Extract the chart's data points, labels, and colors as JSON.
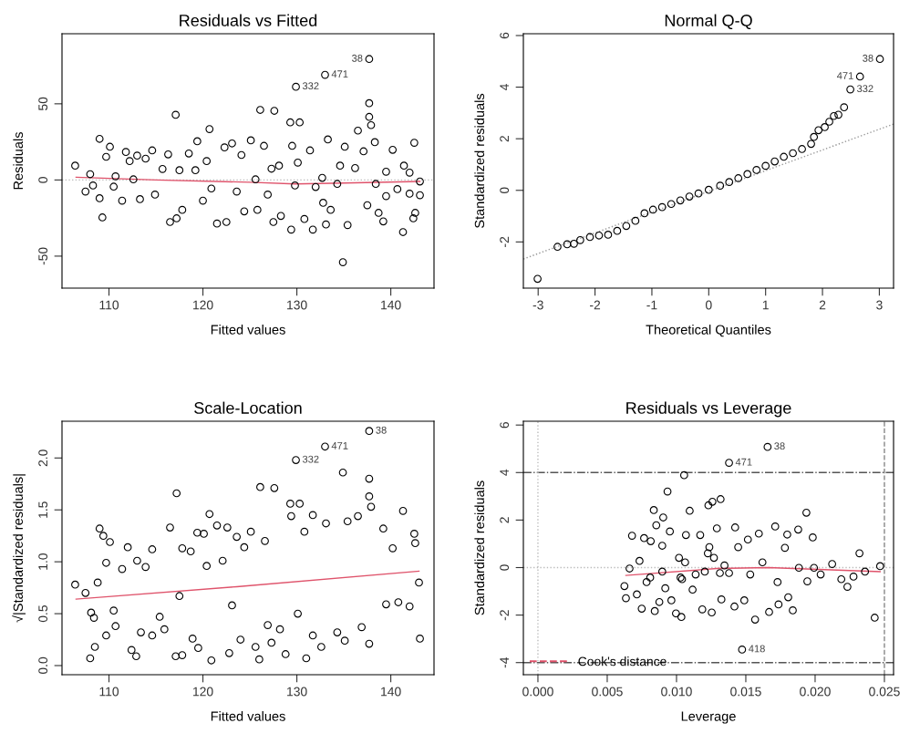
{
  "chart_data": [
    {
      "type": "scatter",
      "title": "Residuals vs Fitted",
      "xlabel": "Fitted values",
      "ylabel": "Residuals",
      "xlim": [
        105.0,
        144.6
      ],
      "xticks": [
        110,
        120,
        130,
        140
      ],
      "ylim": [
        -71,
        96
      ],
      "yticks": [
        -50,
        0,
        50
      ],
      "series": [
        {
          "color": "#000000",
          "marker": "circle",
          "x": [
            106.4,
            107.5,
            108.0,
            108.3,
            109.0,
            109.0,
            109.3,
            109.7,
            110.1,
            110.5,
            110.7,
            111.4,
            111.8,
            112.2,
            112.6,
            113.0,
            113.3,
            113.9,
            114.6,
            114.9,
            115.7,
            116.3,
            116.5,
            117.1,
            117.2,
            117.5,
            117.8,
            118.5,
            119.2,
            119.4,
            120.0,
            120.4,
            120.7,
            120.9,
            121.5,
            122.3,
            122.5,
            123.1,
            123.6,
            124.1,
            124.4,
            125.1,
            125.6,
            125.8,
            126.1,
            126.5,
            126.9,
            127.3,
            127.5,
            127.6,
            128.1,
            128.3,
            129.3,
            129.4,
            129.5,
            129.8,
            129.9,
            130.1,
            130.3,
            130.8,
            131.4,
            131.7,
            132.0,
            132.7,
            132.8,
            133.0,
            133.1,
            133.3,
            133.6,
            134.3,
            134.6,
            134.9,
            135.1,
            135.4,
            136.2,
            136.5,
            137.1,
            137.5,
            137.7,
            137.7,
            137.7,
            137.9,
            138.3,
            138.4,
            138.7,
            139.2,
            139.5,
            139.5,
            140.2,
            140.7,
            141.3,
            141.4,
            142.0,
            142.0,
            142.4,
            142.5,
            142.6,
            143.1,
            143.1
          ],
          "values": [
            9.4,
            -7.6,
            3.8,
            -3.6,
            27,
            -12,
            -24.6,
            15.2,
            21.8,
            -4.4,
            2.4,
            -13.6,
            18.4,
            12.4,
            0.4,
            16,
            -12.6,
            14,
            19.4,
            -9.6,
            7.2,
            16.8,
            -27.6,
            42.8,
            -25.2,
            6.4,
            -19.6,
            17.4,
            6.4,
            25.4,
            -13.6,
            12.4,
            33.4,
            -5.6,
            -28.6,
            21.4,
            -27.6,
            24,
            -7.6,
            16.4,
            -20.6,
            26,
            0.4,
            -19.6,
            46,
            22.4,
            -9.6,
            7.4,
            -27.6,
            45.4,
            9.4,
            -23.6,
            37.8,
            -32.6,
            22.4,
            -3.6,
            61.2,
            11.4,
            37.8,
            -25.6,
            19.4,
            -32.6,
            -4.6,
            1.4,
            -15,
            69,
            -29.2,
            26.6,
            -19.6,
            -2.6,
            9.4,
            -54,
            21.8,
            -29.6,
            7.8,
            32.4,
            18.8,
            -16.6,
            50.4,
            79.4,
            41.4,
            36,
            24.8,
            -2.6,
            -21.6,
            -27.2,
            5.4,
            -10.6,
            19.8,
            -6,
            -34.2,
            9.4,
            4.8,
            -9,
            -25.2,
            24.4,
            -21.6,
            -1,
            -10
          ]
        },
        {
          "type": "line",
          "color": "#df536b",
          "line_style": "solid",
          "x": [
            106.5,
            115,
            125,
            129.8,
            135,
            143.1
          ],
          "values": [
            1.8,
            0,
            -1.5,
            -2.6,
            -2,
            -1
          ]
        }
      ],
      "ref_lines": [
        {
          "axis": "y",
          "value": 0,
          "color": "#bbbbbb",
          "line_style": "dotted"
        }
      ],
      "annotations": [
        {
          "text": "38",
          "x": 137.7,
          "y": 79.4
        },
        {
          "text": "471",
          "x": 133.0,
          "y": 69
        },
        {
          "text": "332",
          "x": 129.9,
          "y": 61.2
        }
      ]
    },
    {
      "type": "scatter",
      "title": "Normal Q-Q",
      "xlabel": "Theoretical Quantiles",
      "ylabel": "Standardized residuals",
      "xlim": [
        -3.26,
        3.25
      ],
      "xticks": [
        -3,
        -2,
        -1,
        0,
        1,
        2,
        3
      ],
      "ylim": [
        -3.79,
        6.07
      ],
      "yticks": [
        -2,
        0,
        2,
        4,
        6
      ],
      "series": [
        {
          "color": "#000000",
          "marker": "circle",
          "x": [
            -3.01,
            -2.66,
            -2.49,
            -2.37,
            -2.26,
            -2.09,
            -1.93,
            -1.77,
            -1.61,
            -1.45,
            -1.29,
            -1.13,
            -0.98,
            -0.82,
            -0.66,
            -0.5,
            -0.34,
            -0.18,
            0,
            0.2,
            0.36,
            0.52,
            0.68,
            0.84,
            1.0,
            1.16,
            1.32,
            1.48,
            1.64,
            1.8,
            1.85,
            1.93,
            2.04,
            2.12,
            2.2,
            2.28,
            2.38,
            2.49,
            2.66,
            3.01
          ],
          "values": [
            -3.43,
            -2.19,
            -2.09,
            -2.07,
            -1.93,
            -1.81,
            -1.75,
            -1.72,
            -1.57,
            -1.38,
            -1.18,
            -0.89,
            -0.75,
            -0.65,
            -0.53,
            -0.39,
            -0.24,
            -0.12,
            0.02,
            0.18,
            0.32,
            0.47,
            0.63,
            0.79,
            0.95,
            1.12,
            1.3,
            1.44,
            1.6,
            1.8,
            2.07,
            2.33,
            2.45,
            2.66,
            2.88,
            2.93,
            3.22,
            3.91,
            4.41,
            5.09
          ]
        },
        {
          "type": "line",
          "color": "#999999",
          "line_style": "dotted",
          "x": [
            -3.26,
            3.25
          ],
          "values": [
            -2.66,
            2.57
          ]
        }
      ],
      "annotations": [
        {
          "text": "38",
          "x": 3.01,
          "y": 5.09
        },
        {
          "text": "471",
          "x": 2.66,
          "y": 4.41
        },
        {
          "text": "332",
          "x": 2.49,
          "y": 3.91
        }
      ]
    },
    {
      "type": "scatter",
      "title": "Scale-Location",
      "xlabel": "Fitted values",
      "ylabel": "√|Standardized residuals|",
      "xlim": [
        105.0,
        144.6
      ],
      "xticks": [
        110,
        120,
        130,
        140
      ],
      "ylim": [
        -0.088,
        2.354
      ],
      "yticks": [
        {
          "value": 0,
          "label": "0.0"
        },
        0.5,
        {
          "value": 1,
          "label": "1.0"
        },
        1.5,
        {
          "value": 2,
          "label": "2.0"
        }
      ],
      "series": [
        {
          "color": "#000000",
          "marker": "circle",
          "x": [
            106.4,
            107.5,
            108.0,
            108.1,
            108.4,
            108.5,
            108.8,
            109.0,
            109.4,
            109.7,
            109.7,
            110.1,
            110.5,
            110.7,
            111.4,
            112.0,
            112.4,
            112.9,
            113.0,
            113.4,
            113.9,
            114.6,
            114.6,
            115.4,
            115.9,
            116.5,
            117.1,
            117.2,
            117.5,
            117.8,
            117.8,
            118.7,
            118.9,
            119.4,
            119.5,
            120.1,
            120.4,
            120.7,
            120.9,
            121.5,
            122.1,
            122.6,
            122.8,
            123.1,
            123.6,
            124.0,
            124.4,
            125.1,
            125.6,
            126.0,
            126.1,
            126.6,
            126.9,
            127.3,
            127.6,
            128.2,
            128.8,
            129.3,
            129.4,
            129.9,
            130.1,
            130.3,
            130.8,
            131.0,
            131.7,
            131.7,
            132.6,
            133.0,
            133.1,
            134.3,
            134.9,
            135.1,
            135.4,
            136.5,
            136.9,
            137.7,
            137.7,
            137.7,
            137.7,
            137.9,
            139.2,
            139.5,
            140.2,
            140.8,
            141.3,
            142.0,
            142.5,
            142.6,
            143.0,
            143.1
          ],
          "values": [
            0.78,
            0.7,
            0.07,
            0.51,
            0.46,
            0.18,
            0.8,
            1.32,
            1.25,
            0.99,
            0.29,
            1.19,
            0.53,
            0.38,
            0.93,
            1.14,
            0.15,
            0.09,
            1.01,
            0.32,
            0.95,
            1.12,
            0.29,
            0.47,
            0.35,
            1.33,
            0.09,
            1.66,
            0.67,
            0.1,
            1.13,
            1.1,
            0.26,
            1.28,
            0.17,
            1.27,
            0.96,
            1.46,
            0.05,
            1.35,
            1.01,
            1.33,
            0.12,
            0.58,
            1.24,
            0.25,
            1.14,
            1.29,
            0.18,
            0.06,
            1.72,
            1.2,
            0.39,
            0.22,
            1.71,
            0.35,
            0.11,
            1.56,
            1.44,
            1.98,
            0.5,
            1.56,
            1.29,
            0.07,
            1.45,
            0.29,
            0.18,
            2.11,
            1.37,
            0.32,
            1.86,
            0.24,
            1.39,
            1.44,
            0.37,
            1.8,
            1.63,
            2.26,
            0.21,
            1.53,
            1.32,
            0.59,
            1.13,
            0.61,
            1.49,
            0.57,
            1.27,
            1.18,
            0.8,
            0.26
          ]
        },
        {
          "type": "line",
          "color": "#df536b",
          "line_style": "solid",
          "x": [
            106.5,
            123.6,
            143.0
          ],
          "values": [
            0.64,
            0.76,
            0.91
          ]
        }
      ],
      "annotations": [
        {
          "text": "38",
          "x": 137.7,
          "y": 2.26
        },
        {
          "text": "471",
          "x": 133.0,
          "y": 2.11
        },
        {
          "text": "332",
          "x": 129.9,
          "y": 1.98
        }
      ]
    },
    {
      "type": "scatter",
      "title": "Residuals vs Leverage",
      "xlabel": "Leverage",
      "ylabel": "Standardized residuals",
      "legend": "bottom left",
      "xlim": [
        -0.00105,
        0.02566
      ],
      "xticks": [
        {
          "value": 0,
          "label": "0.000"
        },
        0.005,
        {
          "value": 0.01,
          "label": "0.010"
        },
        0.015,
        {
          "value": 0.02,
          "label": "0.020"
        },
        0.025
      ],
      "ylim": [
        -4.51,
        6.16
      ],
      "yticks": [
        -4,
        -2,
        0,
        2,
        4,
        6
      ],
      "series": [
        {
          "color": "#000000",
          "marker": "circle",
          "x": [
            0.00624,
            0.00635,
            0.00661,
            0.00679,
            0.00714,
            0.00733,
            0.00749,
            0.00766,
            0.00784,
            0.00814,
            0.00836,
            0.00843,
            0.00854,
            0.00876,
            0.00897,
            0.00904,
            0.00919,
            0.00935,
            0.00952,
            0.00963,
            0.00996,
            0.01018,
            0.01035,
            0.0104,
            0.01055,
            0.01068,
            0.01095,
            0.01116,
            0.01171,
            0.01186,
            0.01204,
            0.0123,
            0.01237,
            0.01259,
            0.01254,
            0.0127,
            0.01291,
            0.01318,
            0.01324,
            0.01346,
            0.01379,
            0.01418,
            0.01423,
            0.01445,
            0.01473,
            0.01489,
            0.01515,
            0.01532,
            0.01567,
            0.01594,
            0.0162,
            0.01657,
            0.01668,
            0.01712,
            0.01729,
            0.01736,
            0.01782,
            0.01799,
            0.01806,
            0.01839,
            0.01878,
            0.01883,
            0.01937,
            0.01944,
            0.01983,
            0.01992,
            0.0204,
            0.02123,
            0.02189,
            0.02233,
            0.02277,
            0.0232,
            0.0236,
            0.0243,
            0.02469,
            0.01029,
            0.01062,
            0.01138,
            0.01226,
            0.01313,
            0.01379,
            0.00897,
            0.0081
          ],
          "values": [
            -0.78,
            -1.29,
            -0.04,
            1.34,
            -1.13,
            0.28,
            -1.73,
            1.24,
            -0.61,
            1.11,
            2.42,
            -1.83,
            1.78,
            -1.45,
            0.92,
            2.11,
            -0.87,
            3.2,
            1.52,
            -1.38,
            -1.93,
            0.41,
            -2.08,
            -0.49,
            3.89,
            1.37,
            2.39,
            -0.93,
            1.37,
            -1.76,
            -0.17,
            2.62,
            0.86,
            2.77,
            -1.89,
            0.41,
            1.65,
            2.88,
            -1.34,
            0.09,
            4.41,
            -1.64,
            1.69,
            0.86,
            -3.45,
            -1.38,
            1.18,
            -0.29,
            -2.19,
            1.43,
            0.22,
            5.08,
            -1.87,
            1.73,
            -0.61,
            -1.55,
            0.83,
            1.39,
            -1.25,
            -1.8,
            1.6,
            -0.01,
            2.31,
            -0.58,
            1.27,
            -0.01,
            -0.29,
            0.15,
            -0.49,
            -0.81,
            -0.38,
            0.6,
            -0.17,
            -2.11,
            0.06,
            -0.42,
            0.22,
            -0.29,
            0.6,
            -0.23,
            -0.23,
            -0.17,
            -0.42
          ]
        },
        {
          "type": "line",
          "color": "#df536b",
          "line_style": "solid",
          "x": [
            0.00635,
            0.01291,
            0.01664,
            0.02469
          ],
          "values": [
            -0.33,
            -0.04,
            0,
            -0.17
          ]
        },
        {
          "type": "line",
          "name": "Cook's distance",
          "color": "#df536b",
          "line_style": "dashed"
        }
      ],
      "ref_lines": [
        {
          "axis": "y",
          "value": 4,
          "color": "#555555",
          "line_style": "dashdot"
        },
        {
          "axis": "y",
          "value": -4,
          "color": "#555555",
          "line_style": "dashdot"
        },
        {
          "axis": "x",
          "value": 0.025,
          "color": "#888888",
          "line_style": "dashed"
        },
        {
          "axis": "x",
          "value": 0,
          "color": "#bbbbbb",
          "line_style": "dotted"
        },
        {
          "axis": "y",
          "value": 0,
          "color": "#bbbbbb",
          "line_style": "dotted"
        }
      ],
      "annotations": [
        {
          "text": "38",
          "x": 0.01657,
          "y": 5.08
        },
        {
          "text": "471",
          "x": 0.01379,
          "y": 4.41
        },
        {
          "text": "418",
          "x": 0.01473,
          "y": -3.45
        }
      ]
    }
  ]
}
